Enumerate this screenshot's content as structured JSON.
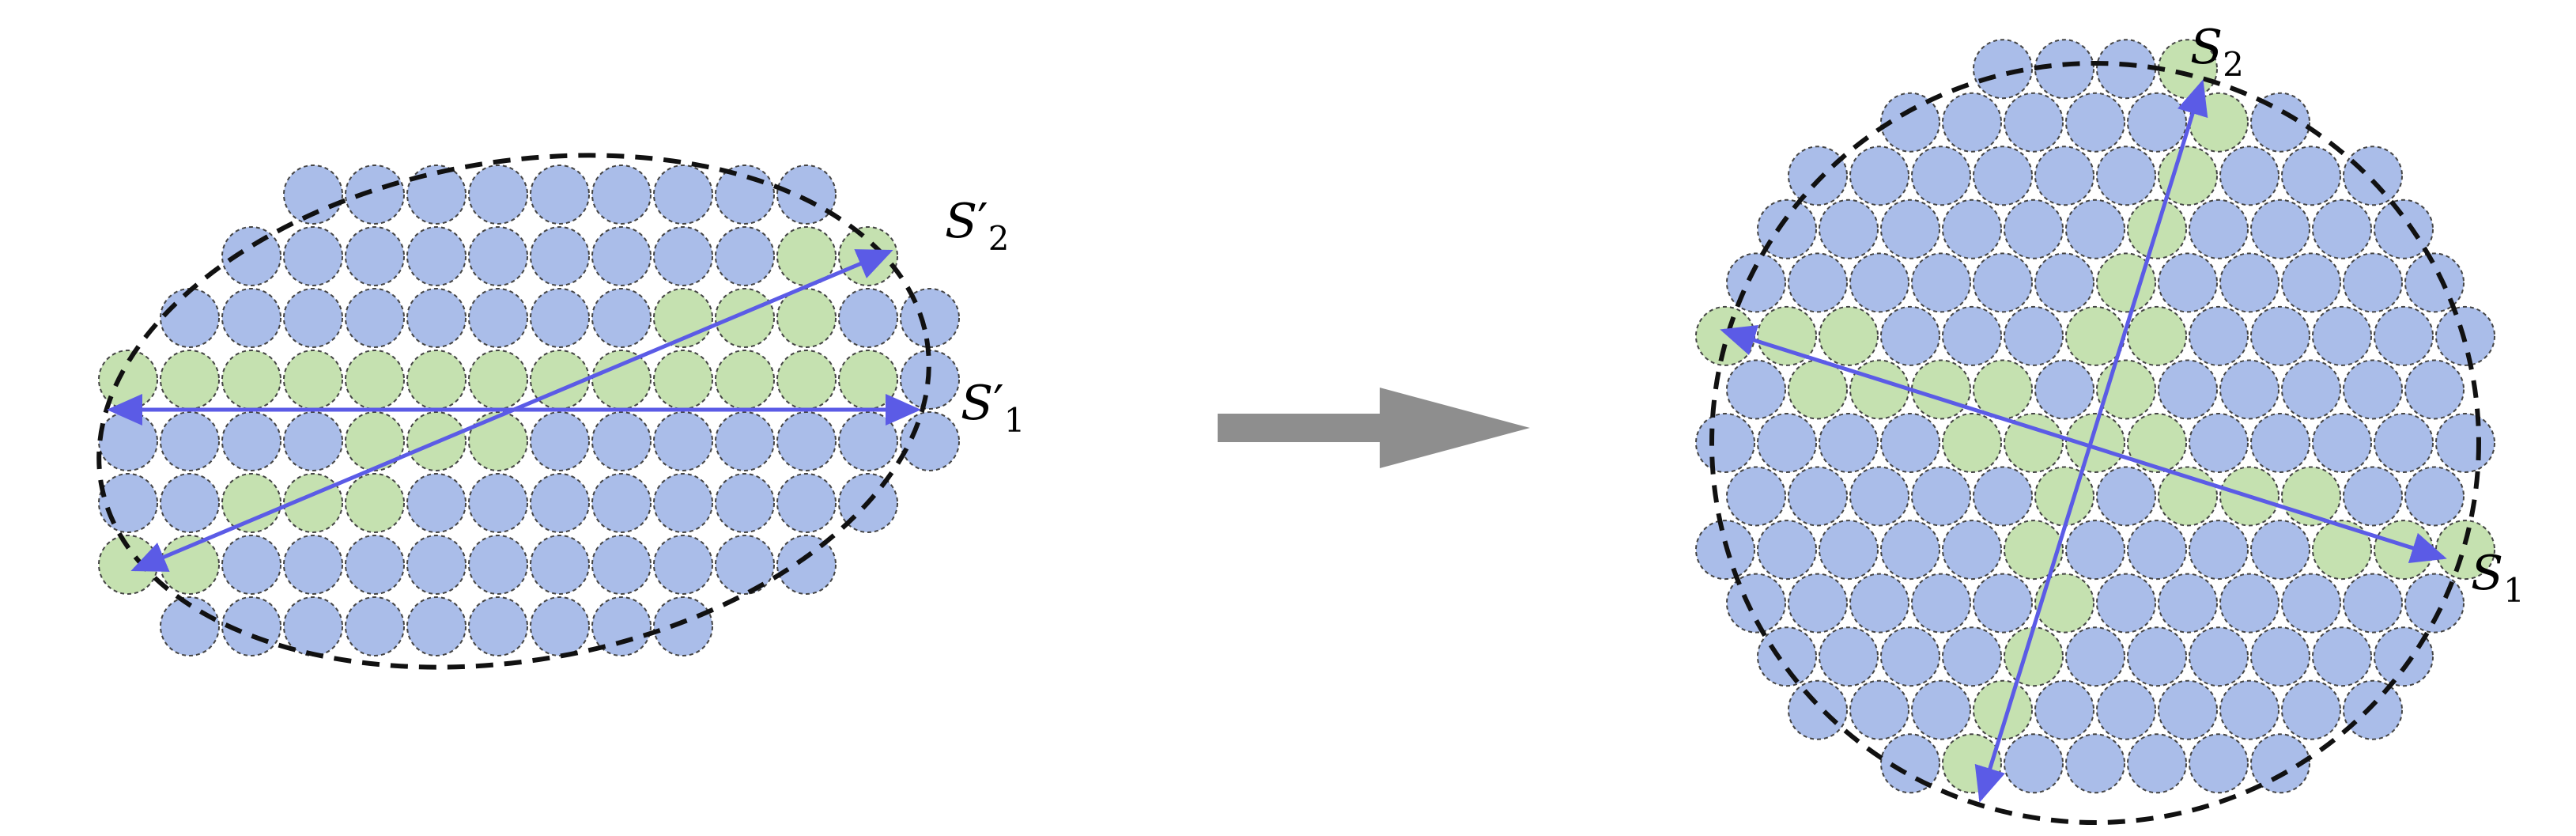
{
  "colors": {
    "particle_fill": "#aabde9",
    "chain_fill": "#c5e1b0",
    "particle_stroke": "#444444",
    "boundary_stroke": "#111111",
    "axis_stroke": "#5b5be6",
    "transform_arrow": "#8e8e8e"
  },
  "left_panel": {
    "labels": {
      "s2_prime": {
        "symbol": "S",
        "prime": "′",
        "sub": "2"
      },
      "s1_prime": {
        "symbol": "S",
        "prime": "′",
        "sub": "1"
      }
    }
  },
  "right_panel": {
    "labels": {
      "s2": {
        "symbol": "S",
        "sub": "2"
      },
      "s1": {
        "symbol": "S",
        "sub": "1"
      }
    }
  }
}
